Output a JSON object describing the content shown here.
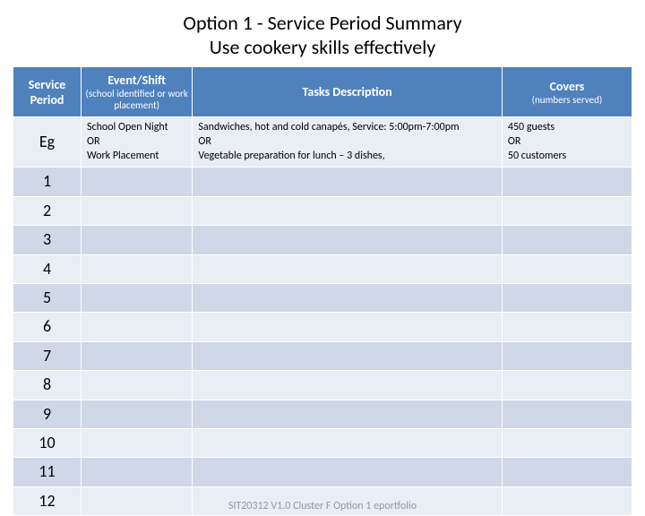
{
  "title": "Option 1 - Service Period Summary",
  "subtitle": "Use cookery skills effectively",
  "footer": "SIT20312 V1.0 Cluster F Option 1 eportfolio",
  "colors": {
    "header_bg": "#4f81bd",
    "header_fg": "#ffffff",
    "row_light": "#e9edf4",
    "row_dark": "#d0d8e8"
  },
  "columns": [
    {
      "label": "Service Period",
      "sub": "",
      "width": "11%"
    },
    {
      "label": "Event/Shift",
      "sub": "(school identified or work placement)",
      "width": "18%"
    },
    {
      "label": "Tasks Description",
      "sub": "",
      "width": "50%"
    },
    {
      "label": "Covers",
      "sub": "(numbers served)",
      "width": "21%"
    }
  ],
  "rows": [
    {
      "period": "Eg",
      "event": "School Open Night\nOR\nWork Placement",
      "tasks": "Sandwiches, hot and cold canapés, Service: 5:00pm-7:00pm\nOR\nVegetable preparation for lunch – 3 dishes,",
      "covers": "450 guests\nOR\n50 customers"
    },
    {
      "period": "1",
      "event": "",
      "tasks": "",
      "covers": ""
    },
    {
      "period": "2",
      "event": "",
      "tasks": "",
      "covers": ""
    },
    {
      "period": "3",
      "event": "",
      "tasks": "",
      "covers": ""
    },
    {
      "period": "4",
      "event": "",
      "tasks": "",
      "covers": ""
    },
    {
      "period": "5",
      "event": "",
      "tasks": "",
      "covers": ""
    },
    {
      "period": "6",
      "event": "",
      "tasks": "",
      "covers": ""
    },
    {
      "period": "7",
      "event": "",
      "tasks": "",
      "covers": ""
    },
    {
      "period": "8",
      "event": "",
      "tasks": "",
      "covers": ""
    },
    {
      "period": "9",
      "event": "",
      "tasks": "",
      "covers": ""
    },
    {
      "period": "10",
      "event": "",
      "tasks": "",
      "covers": ""
    },
    {
      "period": "11",
      "event": "",
      "tasks": "",
      "covers": ""
    },
    {
      "period": "12",
      "event": "",
      "tasks": "",
      "covers": ""
    }
  ]
}
